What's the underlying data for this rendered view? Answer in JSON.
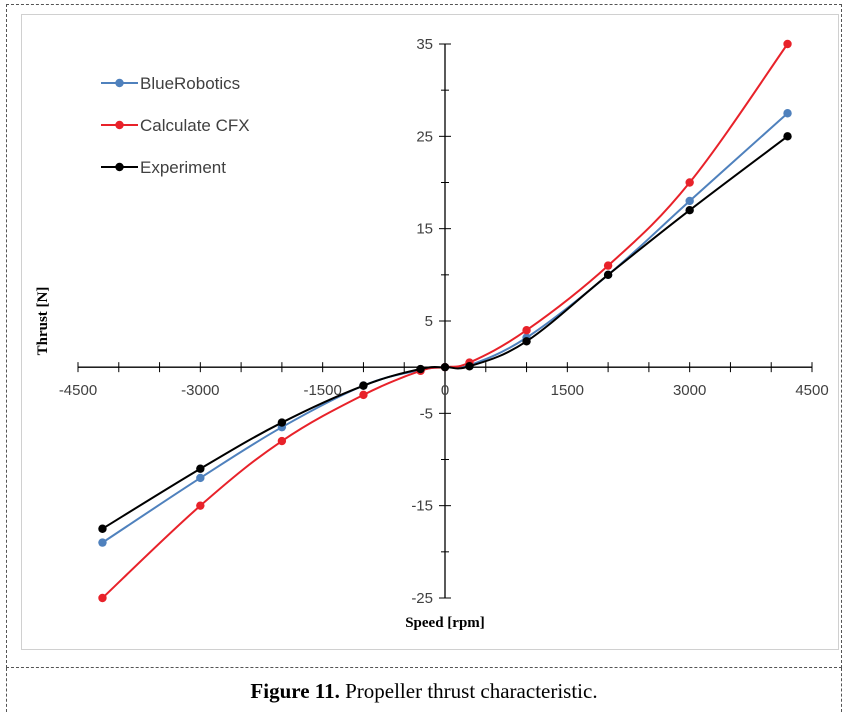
{
  "caption": {
    "label": "Figure 11.",
    "text": " Propeller thrust characteristic."
  },
  "chart_data": {
    "type": "line",
    "xlabel": "Speed [rpm]",
    "ylabel": "Thrust [N]",
    "xlim": [
      -4500,
      4500
    ],
    "ylim": [
      -25,
      35
    ],
    "x_ticks": [
      -4500,
      -3000,
      -1500,
      0,
      1500,
      3000,
      4500
    ],
    "x_tick_labels": [
      "-4500",
      "-3000",
      "-1500",
      "0",
      "1500",
      "3000",
      "4500"
    ],
    "y_ticks": [
      -25,
      -15,
      -5,
      5,
      15,
      25,
      35
    ],
    "y_tick_labels": [
      "-25",
      "-15",
      "-5",
      "5",
      "15",
      "25",
      "35"
    ],
    "grid": false,
    "legend_position": "top-left",
    "series": [
      {
        "name": "BlueRobotics",
        "color": "#4f81bd",
        "x": [
          -4200,
          -3000,
          -2000,
          -1000,
          -300,
          0,
          300,
          1000,
          2000,
          3000,
          4200
        ],
        "y": [
          -19,
          -12,
          -6.5,
          -2,
          -0.3,
          0,
          0.2,
          3.2,
          10,
          18,
          27.5
        ]
      },
      {
        "name": "Calculate CFX",
        "color": "#e8222a",
        "x": [
          -4200,
          -3000,
          -2000,
          -1000,
          -300,
          0,
          300,
          1000,
          2000,
          3000,
          4200
        ],
        "y": [
          -25,
          -15,
          -8,
          -3,
          -0.4,
          0,
          0.5,
          4,
          11,
          20,
          35
        ]
      },
      {
        "name": "Experiment",
        "color": "#000000",
        "x": [
          -4200,
          -3000,
          -2000,
          -1000,
          -300,
          0,
          300,
          1000,
          2000,
          3000,
          4200
        ],
        "y": [
          -17.5,
          -11,
          -6,
          -2,
          -0.2,
          0,
          0.1,
          2.8,
          10,
          17,
          25
        ]
      }
    ]
  }
}
